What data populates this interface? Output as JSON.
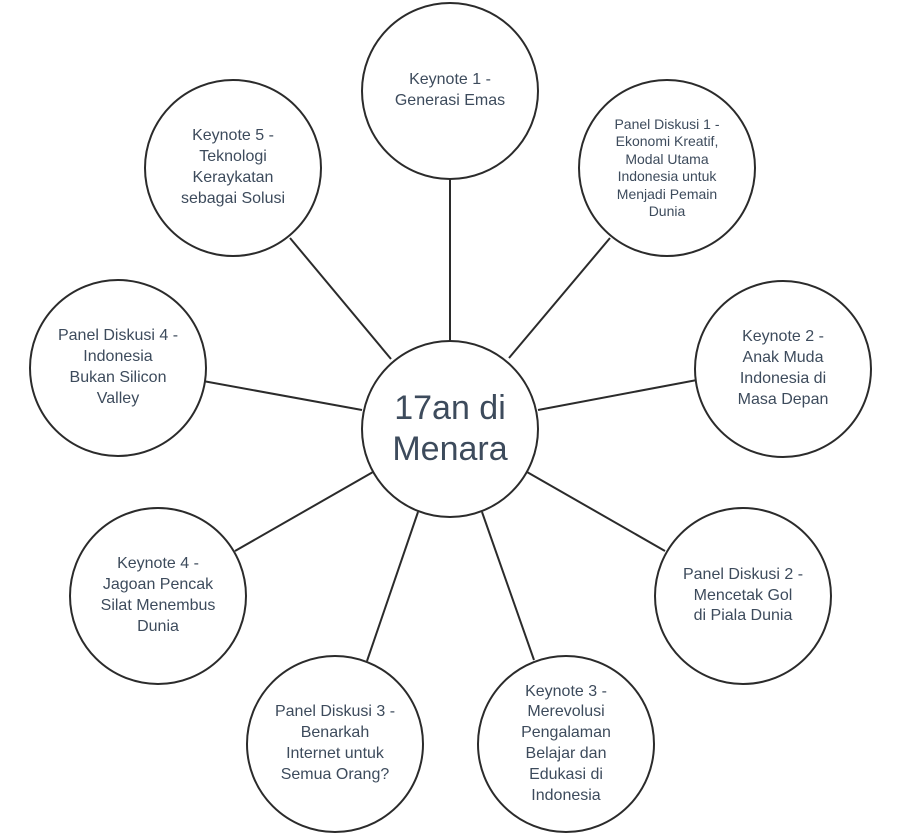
{
  "diagram": {
    "center": {
      "label": "17an di\nMenara"
    },
    "nodes": [
      {
        "id": "keynote-1",
        "label": "Keynote 1 -\nGenerasi Emas"
      },
      {
        "id": "panel-diskusi-1",
        "label": "Panel Diskusi 1 -\nEkonomi Kreatif,\nModal Utama\nIndonesia untuk\nMenjadi Pemain\nDunia"
      },
      {
        "id": "keynote-2",
        "label": "Keynote 2 -\nAnak Muda\nIndonesia di\nMasa Depan"
      },
      {
        "id": "panel-diskusi-2",
        "label": "Panel Diskusi 2 -\nMencetak Gol\ndi Piala Dunia"
      },
      {
        "id": "keynote-3",
        "label": "Keynote 3 -\nMerevolusi\nPengalaman\nBelajar dan\nEdukasi di\nIndonesia"
      },
      {
        "id": "panel-diskusi-3",
        "label": "Panel Diskusi 3 -\nBenarkah\nInternet untuk\nSemua Orang?"
      },
      {
        "id": "keynote-4",
        "label": "Keynote 4 -\nJagoan Pencak\nSilat Menembus\nDunia"
      },
      {
        "id": "panel-diskusi-4",
        "label": "Panel Diskusi 4 -\nIndonesia\nBukan Silicon\nValley"
      },
      {
        "id": "keynote-5",
        "label": "Keynote 5 -\nTeknologi\nKeraykatan\nsebagai Solusi"
      }
    ],
    "colors": {
      "stroke": "#2b2b2b",
      "text": "#3d4b5c",
      "background": "#ffffff"
    }
  }
}
